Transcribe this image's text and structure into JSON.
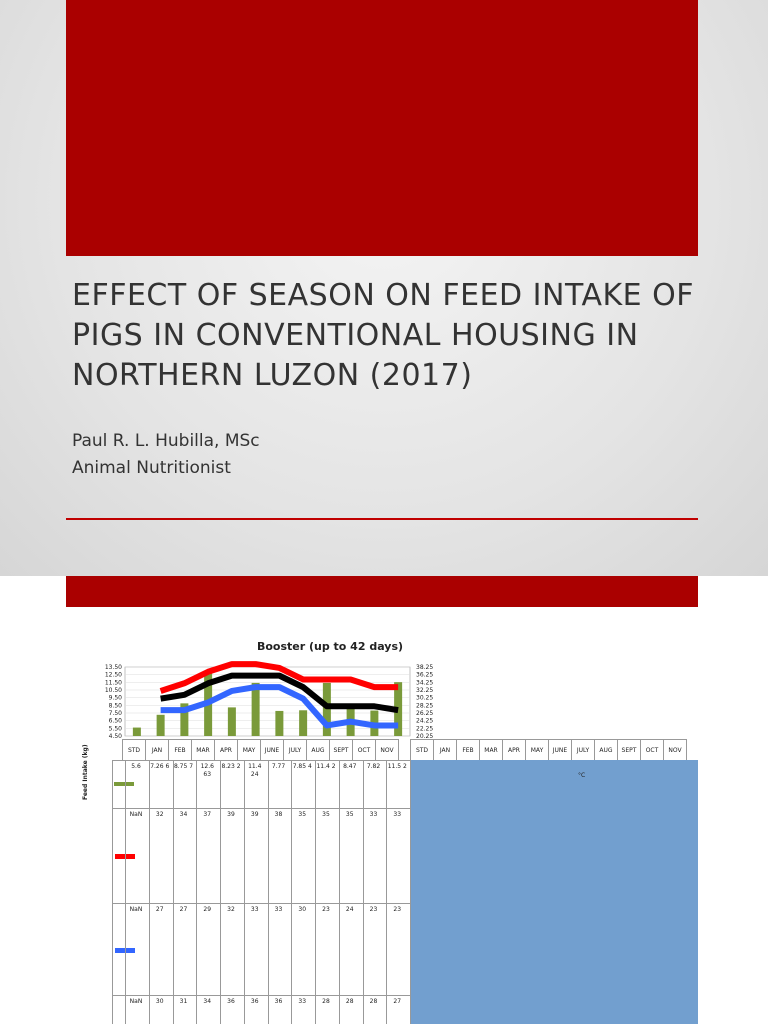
{
  "slide": {
    "title": "EFFECT OF SEASON ON FEED INTAKE OF PIGS IN CONVENTIONAL HOUSING IN NORTHERN LUZON (2017)",
    "author": "Paul R. L. Hubilla, MSc",
    "role": "Animal Nutritionist",
    "colors": {
      "banner": "#aa0000",
      "panel": "#729fcf"
    }
  },
  "chart_data": {
    "type": "bar",
    "title": "Booster (up to 42 days)",
    "ylabel": "Feed Intake (kg)",
    "y2label": "°C",
    "categories": [
      "STD",
      "JAN",
      "FEB",
      "MAR",
      "APR",
      "MAY",
      "JUNE",
      "JULY",
      "AUG",
      "SEPT",
      "OCT",
      "NOV"
    ],
    "y_ticks": [
      "13.50",
      "12.50",
      "11.50",
      "10.50",
      "9.50",
      "8.50",
      "7.50",
      "6.50",
      "5.50",
      "4.50"
    ],
    "y2_ticks": [
      "38.25",
      "36.25",
      "34.25",
      "32.25",
      "30.25",
      "28.25",
      "26.25",
      "24.25",
      "22.25",
      "20.25"
    ],
    "ylim": [
      4.5,
      13.5
    ],
    "y2lim": [
      20.25,
      38.25
    ],
    "series": [
      {
        "axis": "left",
        "kind": "bar",
        "color": "#7a9a3a",
        "labels": [
          "5.6",
          "7.26 6",
          "8.75 7",
          "12.6 63",
          "8.23 2",
          "11.4 24",
          "7.77",
          "7.85 4",
          "11.4 2",
          "8.47",
          "7.82",
          "11.5 2"
        ],
        "values": [
          5.6,
          7.266,
          8.757,
          12.663,
          8.232,
          11.424,
          7.77,
          7.854,
          11.42,
          8.47,
          7.82,
          11.52
        ]
      },
      {
        "axis": "right",
        "kind": "line",
        "color": "#ff0000",
        "labels": [
          "NaN",
          "32",
          "34",
          "37",
          "39",
          "39",
          "38",
          "35",
          "35",
          "35",
          "33",
          "33"
        ],
        "values": [
          null,
          32,
          34,
          37,
          39,
          39,
          38,
          35,
          35,
          35,
          33,
          33
        ]
      },
      {
        "axis": "right",
        "kind": "line",
        "color": "#3366ff",
        "labels": [
          "NaN",
          "27",
          "27",
          "29",
          "32",
          "33",
          "33",
          "30",
          "23",
          "24",
          "23",
          "23"
        ],
        "values": [
          null,
          27,
          27,
          29,
          32,
          33,
          33,
          30,
          23,
          24,
          23,
          23
        ]
      },
      {
        "axis": "right",
        "kind": "line",
        "color": "#000000",
        "labels": [
          "NaN",
          "30",
          "31",
          "34",
          "36",
          "36",
          "36",
          "33",
          "28",
          "28",
          "28",
          "27"
        ],
        "values": [
          null,
          30,
          31,
          34,
          36,
          36,
          36,
          33,
          28,
          28,
          28,
          27
        ]
      }
    ]
  }
}
